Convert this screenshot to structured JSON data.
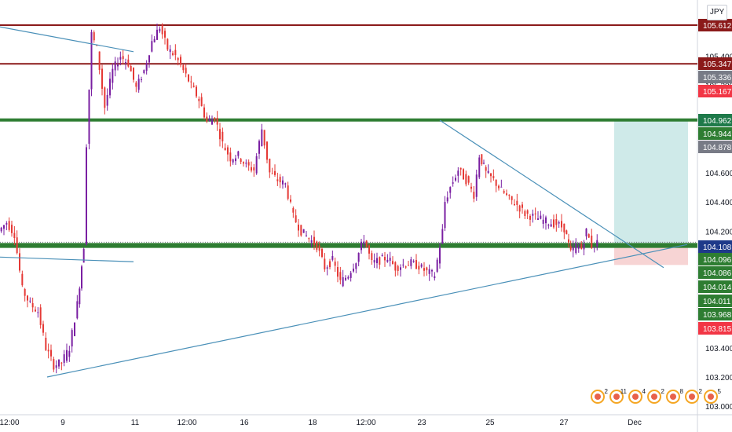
{
  "chart_data": {
    "type": "line",
    "symbol_currency": "JPY",
    "y_axis": {
      "ylim": [
        103.0,
        105.8
      ],
      "ticks": [
        "105.400",
        "105.200",
        "104.600",
        "104.400",
        "104.200",
        "103.400",
        "103.200",
        "103.000"
      ],
      "tick_values": [
        105.4,
        105.2,
        104.6,
        104.4,
        104.2,
        103.4,
        103.2,
        103.0
      ]
    },
    "x_axis": {
      "tick_labels": [
        "12:00",
        "9",
        "11",
        "12:00",
        "16",
        "18",
        "12:00",
        "23",
        "25",
        "27",
        "Dec"
      ],
      "bar_index_range": [
        0,
        760
      ]
    },
    "price_labels": [
      {
        "text": "105.612",
        "value": 105.612,
        "color": "#8b1a1a"
      },
      {
        "text": "105.347",
        "value": 105.347,
        "color": "#8b1a1a"
      },
      {
        "text": "105.336",
        "value": 105.336,
        "color": "#787b86"
      },
      {
        "text": "105.167",
        "value": 105.167,
        "color": "#f23645"
      },
      {
        "text": "104.962",
        "value": 104.962,
        "color": "#1e7a4a"
      },
      {
        "text": "104.944",
        "value": 104.944,
        "color": "#2e7d32"
      },
      {
        "text": "104.878",
        "value": 104.878,
        "color": "#787b86"
      },
      {
        "text": "104.108",
        "value": 104.108,
        "color": "#1e3a8a"
      },
      {
        "text": "104.096",
        "value": 104.096,
        "color": "#2e7d32"
      },
      {
        "text": "104.086",
        "value": 104.086,
        "color": "#2e7d32"
      },
      {
        "text": "104.014",
        "value": 104.014,
        "color": "#2e7d32"
      },
      {
        "text": "104.011",
        "value": 104.011,
        "color": "#2e7d32"
      },
      {
        "text": "103.968",
        "value": 103.968,
        "color": "#2e7d32"
      },
      {
        "text": "103.815",
        "value": 103.815,
        "color": "#f23645"
      }
    ],
    "horizontal_levels": [
      {
        "value": 105.612,
        "color": "#8b1a1a"
      },
      {
        "value": 105.347,
        "color": "#8b1a1a"
      },
      {
        "value": 104.962,
        "color": "#2e7d32"
      },
      {
        "value": 104.108,
        "color": "#2e7d32"
      },
      {
        "value": 104.096,
        "color": "#2e7d32"
      }
    ],
    "trendlines": [
      {
        "from": [
          0,
          105.6
        ],
        "to": [
          170,
          105.43
        ],
        "color": "#4a90b8"
      },
      {
        "from": [
          0,
          104.022
        ],
        "to": [
          170,
          103.99
        ],
        "color": "#4a90b8"
      },
      {
        "from": [
          60,
          103.2
        ],
        "to": [
          875,
          104.108
        ],
        "color": "#4a90b8"
      },
      {
        "from": [
          560,
          104.96
        ],
        "to": [
          845,
          103.95
        ],
        "color": "#4a90b8"
      }
    ],
    "position_box": {
      "start_x": 782,
      "entry": 104.108,
      "target": 104.962,
      "stop": 103.968,
      "profit_color": "#cfeae9",
      "loss_color": "#f7d4d4"
    },
    "series": [
      {
        "x": [
          0,
          10,
          20,
          30,
          40,
          50,
          60,
          70,
          80,
          90,
          100,
          108,
          112,
          118,
          125,
          135,
          145,
          155,
          165,
          175,
          185,
          195,
          205,
          215,
          225,
          235,
          245,
          255,
          265,
          275,
          285,
          295,
          305,
          315,
          325,
          335,
          345,
          355,
          365,
          375,
          385,
          395,
          405,
          415,
          425,
          435,
          445,
          455,
          465,
          475,
          485,
          495,
          505,
          515,
          525,
          535,
          545,
          555,
          565,
          568,
          575,
          585,
          595,
          605,
          612,
          620,
          630,
          640,
          650,
          660,
          670,
          680,
          690,
          700,
          710,
          720,
          728,
          735,
          742,
          748,
          755,
          762
        ],
        "values": [
          104.2,
          104.26,
          104.18,
          103.8,
          103.7,
          103.65,
          103.4,
          103.28,
          103.3,
          103.4,
          103.7,
          104.1,
          104.8,
          105.55,
          105.45,
          105.05,
          105.3,
          105.4,
          105.35,
          105.18,
          105.3,
          105.5,
          105.6,
          105.45,
          105.4,
          105.3,
          105.2,
          105.1,
          104.95,
          104.98,
          104.8,
          104.7,
          104.72,
          104.65,
          104.62,
          104.9,
          104.6,
          104.55,
          104.52,
          104.3,
          104.2,
          104.15,
          104.1,
          103.95,
          104.0,
          103.85,
          103.9,
          104.0,
          104.15,
          103.98,
          104.0,
          104.02,
          103.95,
          103.97,
          103.98,
          103.96,
          103.92,
          103.9,
          104.2,
          104.4,
          104.5,
          104.62,
          104.55,
          104.45,
          104.72,
          104.6,
          104.55,
          104.48,
          104.42,
          104.38,
          104.32,
          104.3,
          104.28,
          104.26,
          104.25,
          104.22,
          104.05,
          104.1,
          104.08,
          104.2,
          104.1,
          104.12
        ]
      }
    ],
    "candle_colors": {
      "up": "#7a1fa2",
      "down": "#e53935"
    }
  },
  "events": [
    {
      "icon": "event-clock-icon",
      "count": "2"
    },
    {
      "icon": "event-flag-icon",
      "count": "11"
    },
    {
      "icon": "event-flag-icon",
      "count": "4"
    },
    {
      "icon": "event-flag-icon",
      "count": "2"
    },
    {
      "icon": "event-flag-icon",
      "count": "8"
    },
    {
      "icon": "event-flag-icon",
      "count": "2"
    },
    {
      "icon": "event-flag-icon",
      "count": "5"
    }
  ]
}
